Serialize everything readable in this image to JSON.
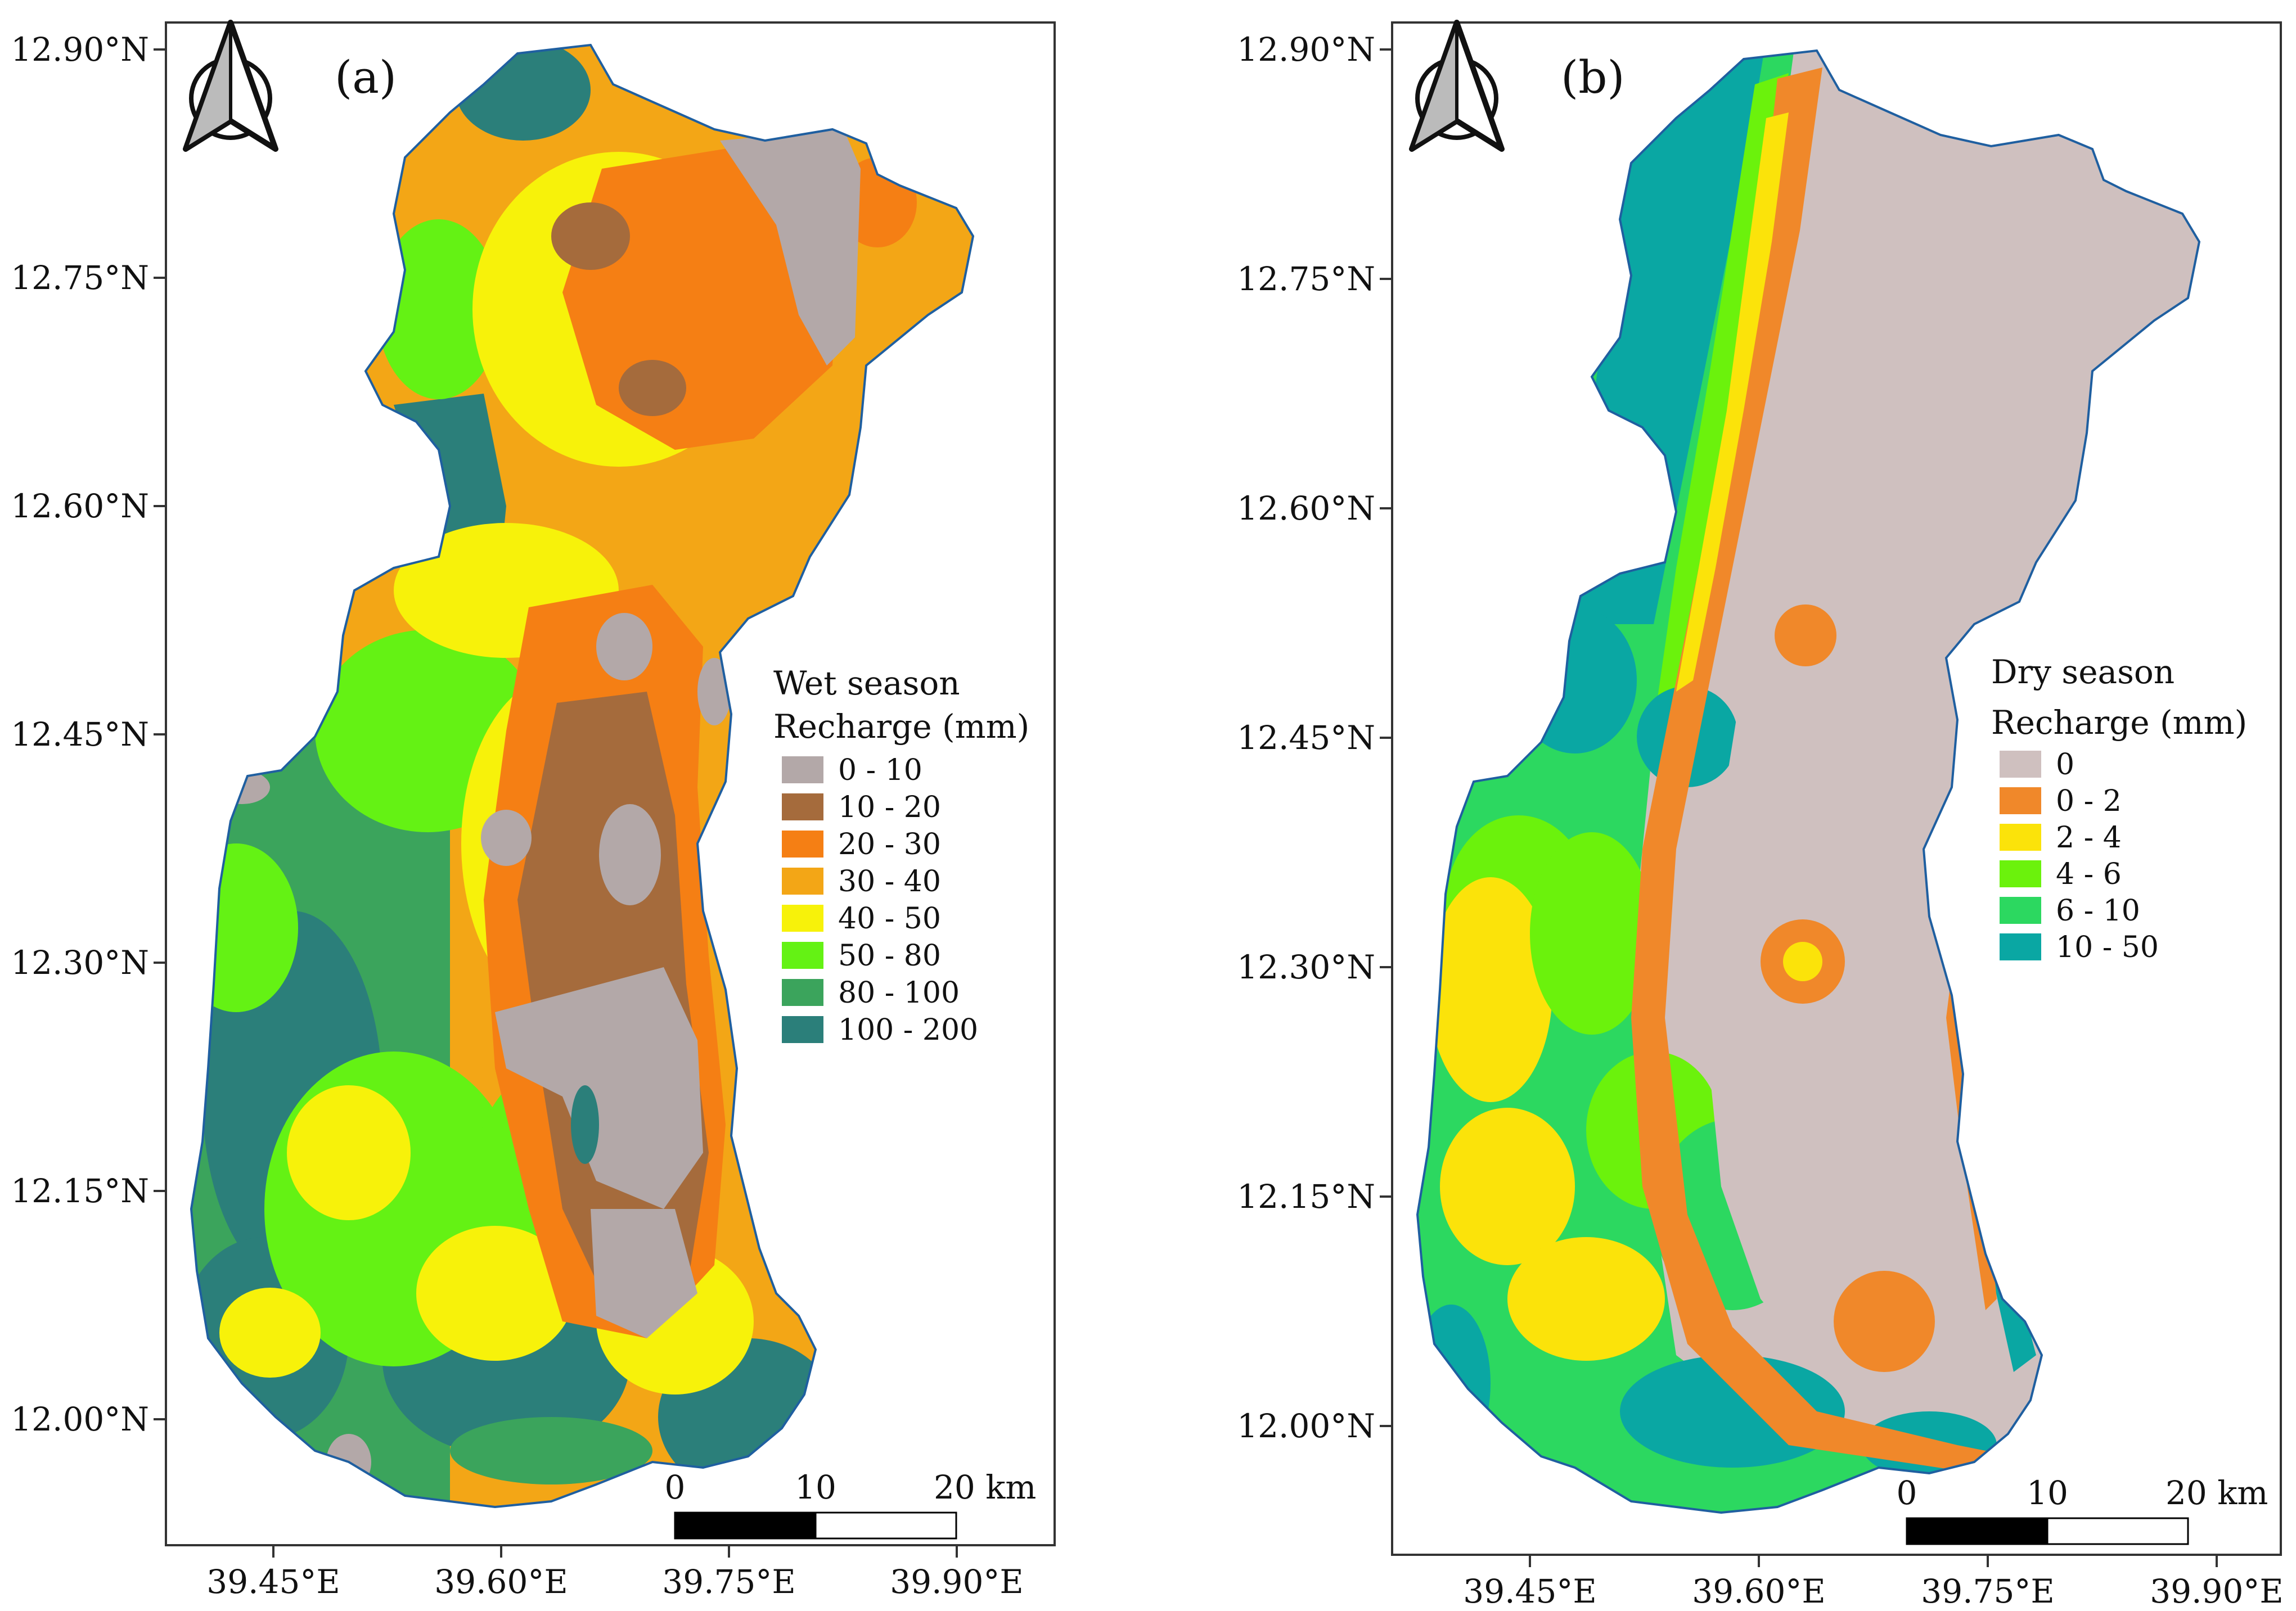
{
  "panels": [
    {
      "label": "(a)",
      "legend_title_1": "Wet season",
      "legend_title_2": "Recharge (mm)",
      "legend": [
        {
          "label": "0 - 10",
          "color": "#b3a8a8"
        },
        {
          "label": "10 - 20",
          "color": "#a56b3c"
        },
        {
          "label": "20 - 30",
          "color": "#f57f14"
        },
        {
          "label": "30 - 40",
          "color": "#f3a616"
        },
        {
          "label": "40 - 50",
          "color": "#f7f20a"
        },
        {
          "label": "50 - 80",
          "color": "#64f214"
        },
        {
          "label": "80 - 100",
          "color": "#3ba45c"
        },
        {
          "label": "100 - 200",
          "color": "#2b7f7a"
        }
      ],
      "lat_ticks": [
        "12.90°N",
        "12.75°N",
        "12.60°N",
        "12.45°N",
        "12.30°N",
        "12.15°N",
        "12.00°N"
      ],
      "lon_ticks": [
        "39.45°E",
        "39.60°E",
        "39.75°E",
        "39.90°E"
      ],
      "scale": [
        "0",
        "10",
        "20 km"
      ]
    },
    {
      "label": "(b)",
      "legend_title_1": "Dry season",
      "legend_title_2": "Recharge (mm)",
      "legend": [
        {
          "label": "0",
          "color": "#cfc0bf"
        },
        {
          "label": "0 - 2",
          "color": "#f0882a"
        },
        {
          "label": "2 - 4",
          "color": "#fbe30a"
        },
        {
          "label": "4 - 6",
          "color": "#6bf20c"
        },
        {
          "label": "6 - 10",
          "color": "#2cd860"
        },
        {
          "label": "10 - 50",
          "color": "#0aa7a3"
        }
      ],
      "lat_ticks": [
        "12.90°N",
        "12.75°N",
        "12.60°N",
        "12.45°N",
        "12.30°N",
        "12.15°N",
        "12.00°N"
      ],
      "lon_ticks": [
        "39.45°E",
        "39.60°E",
        "39.75°E",
        "39.90°E"
      ],
      "scale": [
        "0",
        "10",
        "20 km"
      ]
    }
  ]
}
